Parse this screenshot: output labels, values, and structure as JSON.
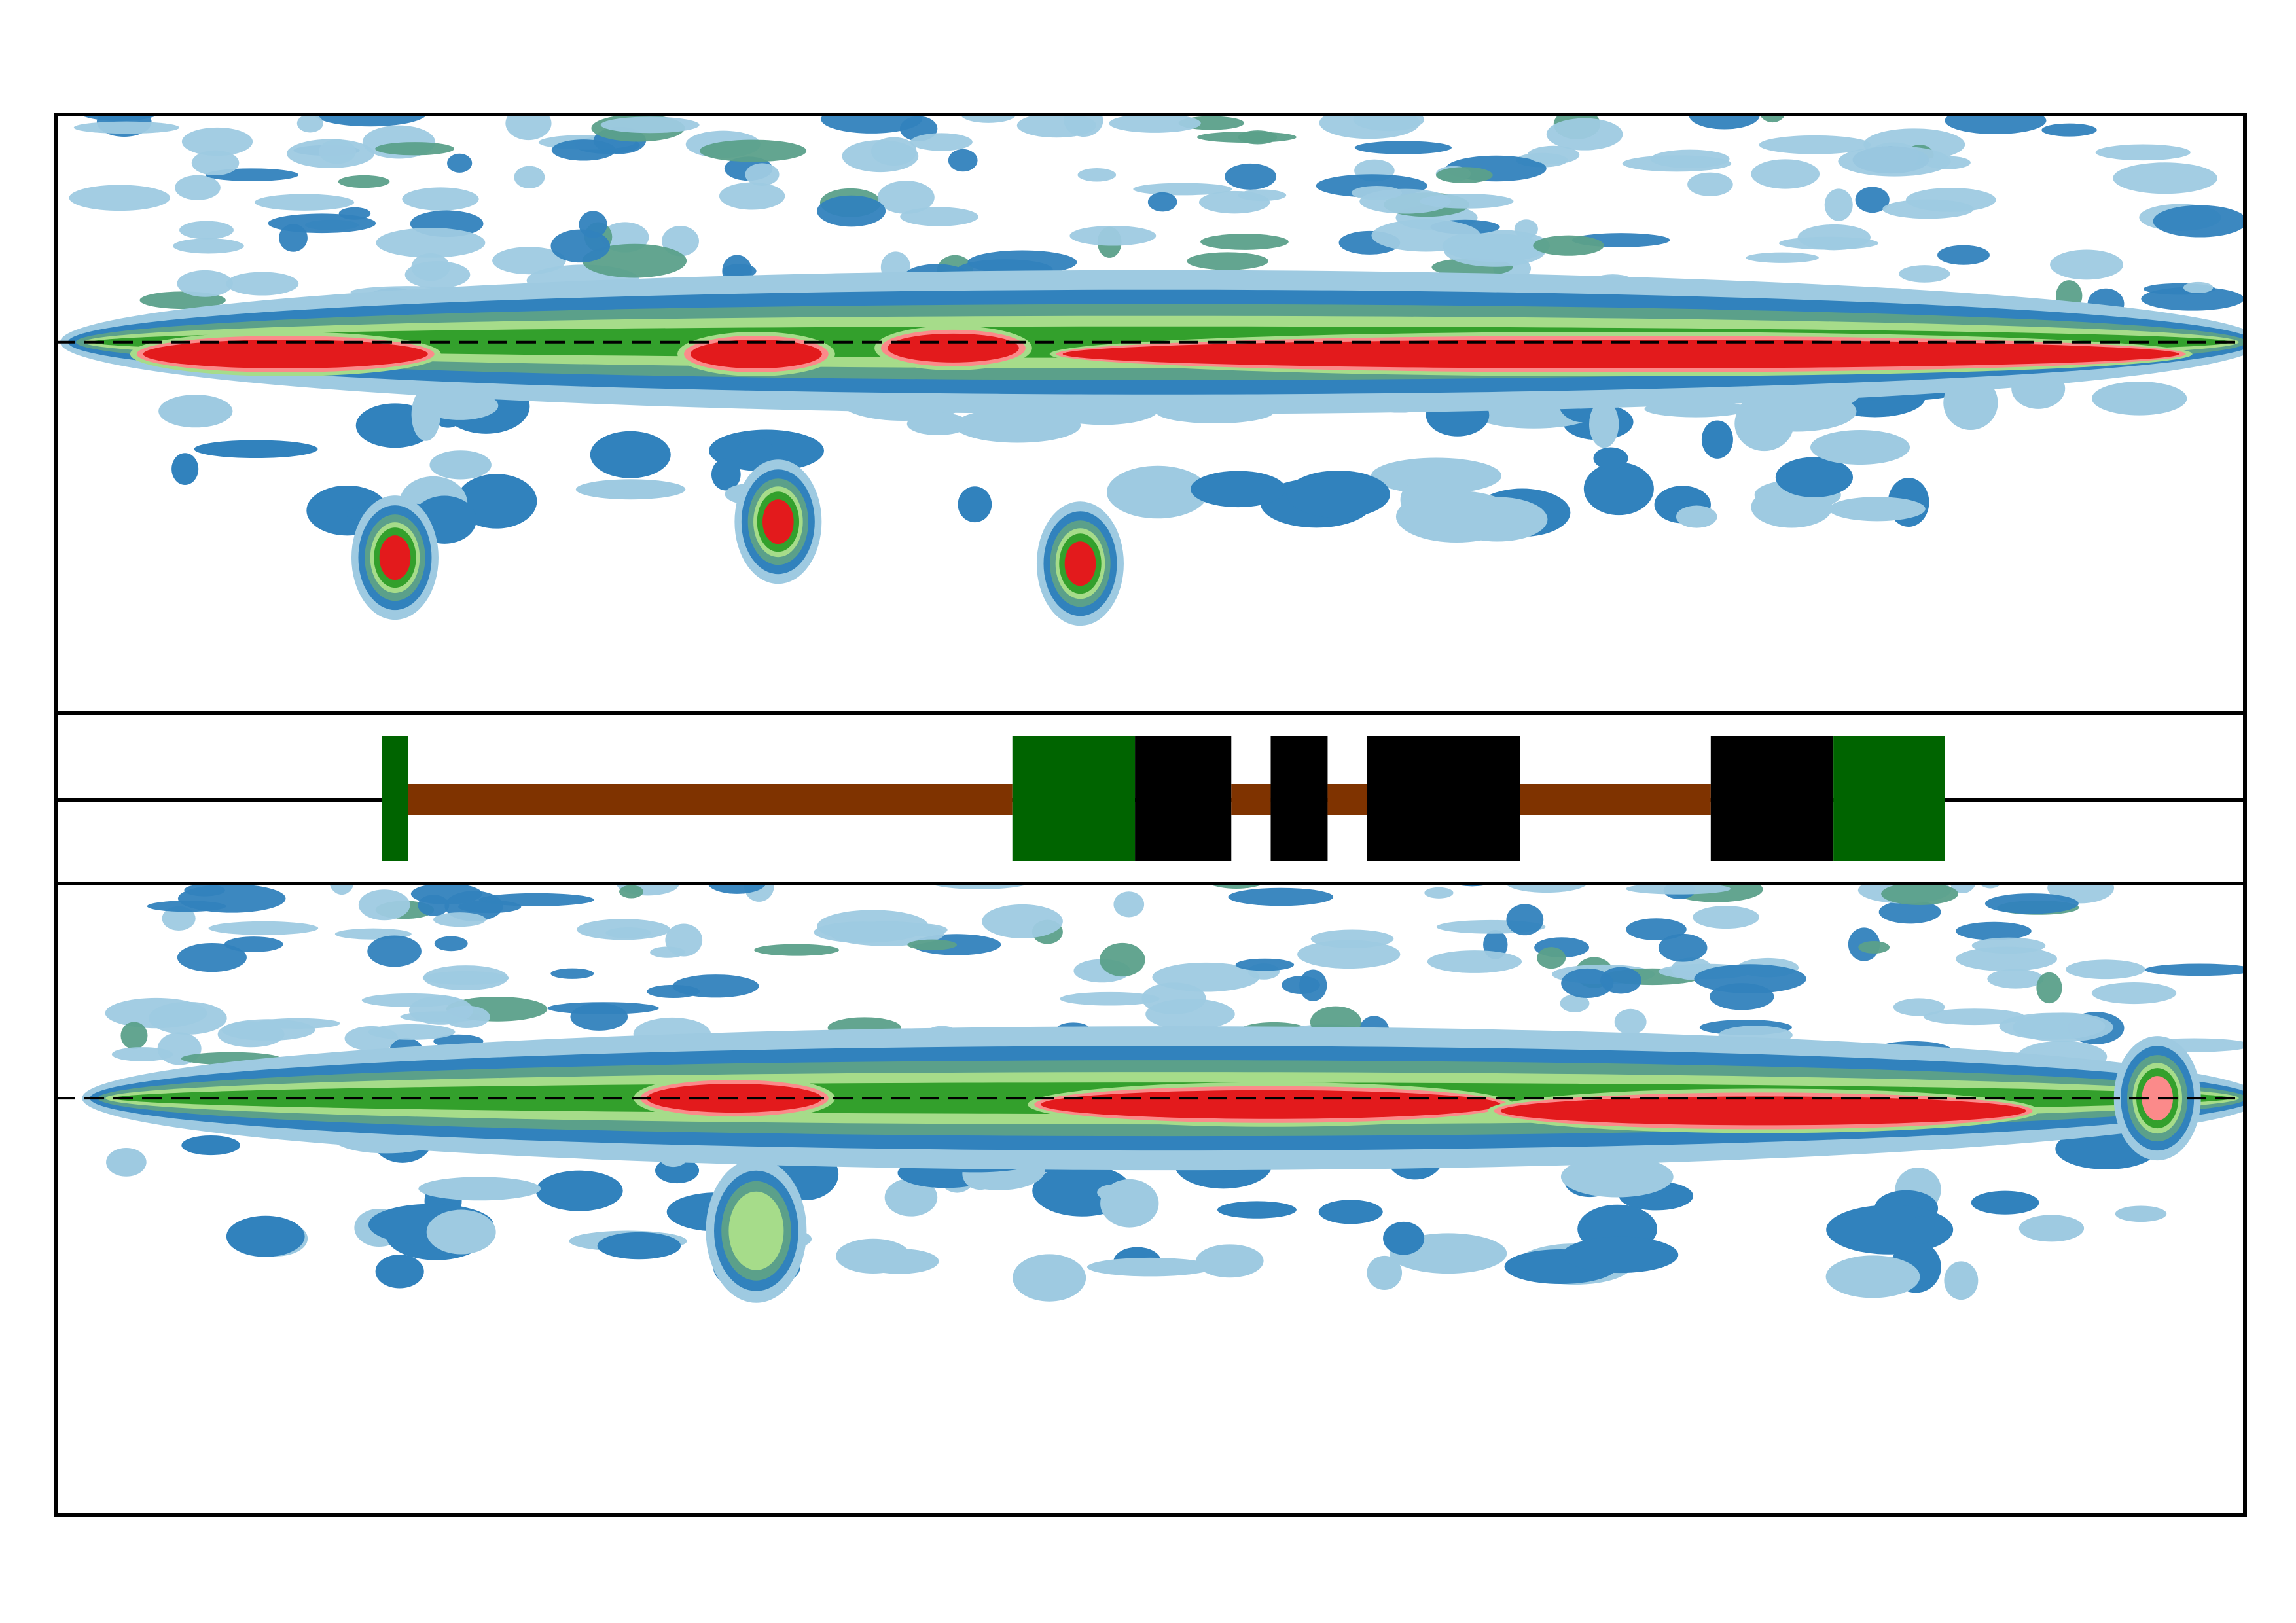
{
  "colors": {
    "background": "#ffffff",
    "axis": "#000000",
    "exon_utr": "#006400",
    "exon_cds": "#000000",
    "intron": "#7f3300"
  },
  "chart_data": [
    {
      "type": "heatmap",
      "kind": "filled-contour",
      "panel": "top",
      "title": "",
      "xlabel": "",
      "ylabel": "",
      "x_range": [
        0,
        1
      ],
      "y_range": [
        0,
        1
      ],
      "grid": false,
      "legend": "none",
      "reference_line": {
        "y": 0.62,
        "style": "dashed"
      },
      "levels": [
        {
          "level": 1,
          "color": "#9ecae1"
        },
        {
          "level": 2,
          "color": "#3182bd"
        },
        {
          "level": 3,
          "color": "#5ba08a"
        },
        {
          "level": 4,
          "color": "#a6dc8a"
        },
        {
          "level": 5,
          "color": "#33a02c"
        },
        {
          "level": 6,
          "color": "#fb8a8a"
        },
        {
          "level": 7,
          "color": "#e31a1c"
        }
      ],
      "features": [
        {
          "name": "main-band",
          "x": [
            0.02,
            0.99
          ],
          "y": 0.62,
          "level": 5
        },
        {
          "name": "red-band-left",
          "x": [
            0.04,
            0.17
          ],
          "y": 0.6,
          "level": 7
        },
        {
          "name": "red-band-middle",
          "x": [
            0.29,
            0.35
          ],
          "y": 0.6,
          "level": 7
        },
        {
          "name": "red-band-small",
          "x": [
            0.38,
            0.44
          ],
          "y": 0.61,
          "level": 7
        },
        {
          "name": "red-band-right",
          "x": [
            0.46,
            0.97
          ],
          "y": 0.6,
          "level": 7
        },
        {
          "name": "hotspot-a",
          "x": 0.155,
          "y": 0.26,
          "level": 7
        },
        {
          "name": "hotspot-b",
          "x": 0.33,
          "y": 0.32,
          "level": 7
        },
        {
          "name": "hotspot-c",
          "x": 0.468,
          "y": 0.25,
          "level": 7
        },
        {
          "name": "upper-scatter",
          "x": [
            0.05,
            0.98
          ],
          "y": 0.82,
          "level": 2
        }
      ]
    },
    {
      "type": "gene-model",
      "panel": "middle",
      "title": "",
      "x_range": [
        0,
        1
      ],
      "features": [
        {
          "kind": "utr",
          "start": 0.149,
          "end": 0.161
        },
        {
          "kind": "intron",
          "start": 0.161,
          "end": 0.437
        },
        {
          "kind": "utr",
          "start": 0.437,
          "end": 0.493
        },
        {
          "kind": "cds",
          "start": 0.493,
          "end": 0.537
        },
        {
          "kind": "intron",
          "start": 0.537,
          "end": 0.555
        },
        {
          "kind": "cds",
          "start": 0.555,
          "end": 0.581
        },
        {
          "kind": "intron",
          "start": 0.581,
          "end": 0.599
        },
        {
          "kind": "cds",
          "start": 0.599,
          "end": 0.669
        },
        {
          "kind": "intron",
          "start": 0.669,
          "end": 0.756
        },
        {
          "kind": "cds",
          "start": 0.756,
          "end": 0.812
        },
        {
          "kind": "utr",
          "start": 0.812,
          "end": 0.863
        }
      ]
    },
    {
      "type": "heatmap",
      "kind": "filled-contour",
      "panel": "bottom",
      "title": "",
      "xlabel": "",
      "ylabel": "",
      "x_range": [
        0,
        1
      ],
      "y_range": [
        0,
        1
      ],
      "grid": false,
      "legend": "none",
      "reference_line": {
        "y": 0.66,
        "style": "dashed"
      },
      "levels": [
        {
          "level": 1,
          "color": "#9ecae1"
        },
        {
          "level": 2,
          "color": "#3182bd"
        },
        {
          "level": 3,
          "color": "#5ba08a"
        },
        {
          "level": 4,
          "color": "#a6dc8a"
        },
        {
          "level": 5,
          "color": "#33a02c"
        },
        {
          "level": 6,
          "color": "#fb8a8a"
        },
        {
          "level": 7,
          "color": "#e31a1c"
        }
      ],
      "features": [
        {
          "name": "main-band",
          "x": [
            0.03,
            0.99
          ],
          "y": 0.66,
          "level": 5
        },
        {
          "name": "red-band-small",
          "x": [
            0.27,
            0.35
          ],
          "y": 0.66,
          "level": 7
        },
        {
          "name": "red-band-middle",
          "x": [
            0.45,
            0.66
          ],
          "y": 0.65,
          "level": 7
        },
        {
          "name": "red-band-right",
          "x": [
            0.66,
            0.9
          ],
          "y": 0.64,
          "level": 7
        },
        {
          "name": "tail-spot",
          "x": 0.96,
          "y": 0.66,
          "level": 6
        },
        {
          "name": "branch",
          "x": 0.32,
          "y": 0.45,
          "level": 4
        },
        {
          "name": "upper-scatter",
          "x": [
            0.04,
            0.98
          ],
          "y": 0.85,
          "level": 2
        }
      ]
    }
  ]
}
